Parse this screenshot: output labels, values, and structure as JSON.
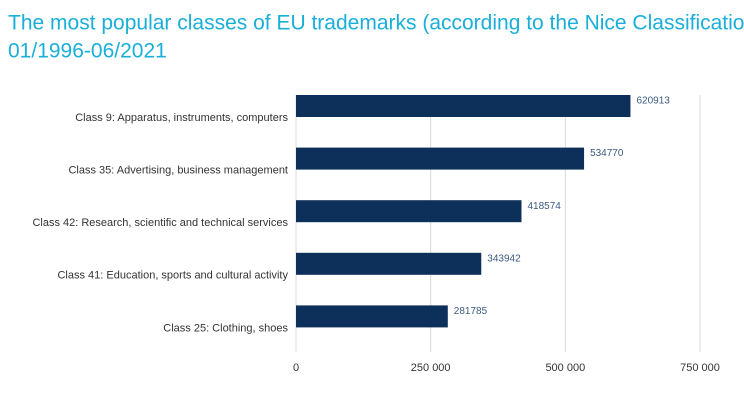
{
  "chart_data": {
    "type": "hbar",
    "title": "The most popular classes of EU trademarks (according to the Nice Classification)",
    "subtitle": "01/1996-06/2021",
    "categories": [
      "Class 9: Apparatus, instruments, computers",
      "Class 35: Advertising, business management",
      "Class 42: Research, scientific and technical services",
      "Class 41: Education, sports and cultural activity",
      "Class 25: Clothing, shoes"
    ],
    "values": [
      620913,
      534770,
      418574,
      343942,
      281785
    ],
    "color": "#0c3059",
    "xlim": [
      0,
      750000
    ],
    "xticks": [
      0,
      {
        "value": 250000,
        "label": "250 000"
      },
      {
        "value": 500000,
        "label": "500 000"
      },
      {
        "value": 750000,
        "label": "750 000"
      }
    ],
    "grid": true
  }
}
